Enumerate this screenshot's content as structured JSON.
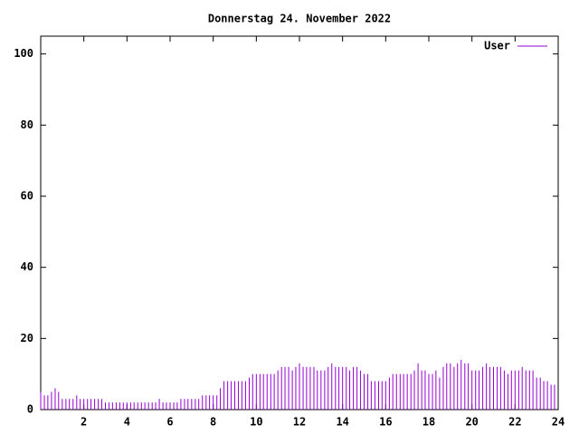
{
  "chart_data": {
    "type": "impulse",
    "title": "Donnerstag 24. November 2022",
    "series": [
      {
        "name": "User",
        "color": "#9400d3",
        "x": [
          0,
          0.17,
          0.33,
          0.5,
          0.67,
          0.83,
          1,
          1.17,
          1.33,
          1.5,
          1.67,
          1.83,
          2,
          2.17,
          2.33,
          2.5,
          2.67,
          2.83,
          3,
          3.17,
          3.33,
          3.5,
          3.67,
          3.83,
          4,
          4.17,
          4.33,
          4.5,
          4.67,
          4.83,
          5,
          5.17,
          5.33,
          5.5,
          5.67,
          5.83,
          6,
          6.17,
          6.33,
          6.5,
          6.67,
          6.83,
          7,
          7.17,
          7.33,
          7.5,
          7.67,
          7.83,
          8,
          8.17,
          8.33,
          8.5,
          8.67,
          8.83,
          9,
          9.17,
          9.33,
          9.5,
          9.67,
          9.83,
          10,
          10.17,
          10.33,
          10.5,
          10.67,
          10.83,
          11,
          11.17,
          11.33,
          11.5,
          11.67,
          11.83,
          12,
          12.17,
          12.33,
          12.5,
          12.67,
          12.83,
          13,
          13.17,
          13.33,
          13.5,
          13.67,
          13.83,
          14,
          14.17,
          14.33,
          14.5,
          14.67,
          14.83,
          15,
          15.17,
          15.33,
          15.5,
          15.67,
          15.83,
          16,
          16.17,
          16.33,
          16.5,
          16.67,
          16.83,
          17,
          17.17,
          17.33,
          17.5,
          17.67,
          17.83,
          18,
          18.17,
          18.33,
          18.5,
          18.67,
          18.83,
          19,
          19.17,
          19.33,
          19.5,
          19.67,
          19.83,
          20,
          20.17,
          20.33,
          20.5,
          20.67,
          20.83,
          21,
          21.17,
          21.33,
          21.5,
          21.67,
          21.83,
          22,
          22.17,
          22.33,
          22.5,
          22.67,
          22.83,
          23,
          23.17,
          23.33,
          23.5,
          23.67,
          23.83
        ],
        "values": [
          5,
          4,
          4,
          5,
          6,
          5,
          3,
          3,
          3,
          3,
          4,
          3,
          3,
          3,
          3,
          3,
          3,
          3,
          2,
          2,
          2,
          2,
          2,
          2,
          2,
          2,
          2,
          2,
          2,
          2,
          2,
          2,
          2,
          3,
          2,
          2,
          2,
          2,
          2,
          3,
          3,
          3,
          3,
          3,
          3,
          4,
          4,
          4,
          4,
          4,
          6,
          8,
          8,
          8,
          8,
          8,
          8,
          8,
          9,
          10,
          10,
          10,
          10,
          10,
          10,
          10,
          11,
          12,
          12,
          12,
          11,
          12,
          13,
          12,
          12,
          12,
          12,
          11,
          11,
          11,
          12,
          13,
          12,
          12,
          12,
          12,
          11,
          12,
          12,
          11,
          10,
          10,
          8,
          8,
          8,
          8,
          8,
          9,
          10,
          10,
          10,
          10,
          10,
          10,
          11,
          13,
          11,
          11,
          10,
          10,
          11,
          9,
          12,
          13,
          13,
          12,
          13,
          14,
          13,
          13,
          11,
          11,
          11,
          12,
          13,
          12,
          12,
          12,
          12,
          11,
          10,
          11,
          11,
          11,
          12,
          11,
          11,
          11,
          9,
          9,
          8,
          8,
          7,
          7
        ]
      }
    ],
    "xlim": [
      0,
      24
    ],
    "xticks": [
      2,
      4,
      6,
      8,
      10,
      12,
      14,
      16,
      18,
      20,
      22,
      24
    ],
    "ylim": [
      0,
      105
    ],
    "yticks": [
      0,
      20,
      40,
      60,
      80,
      100
    ],
    "legend": "top-right"
  }
}
